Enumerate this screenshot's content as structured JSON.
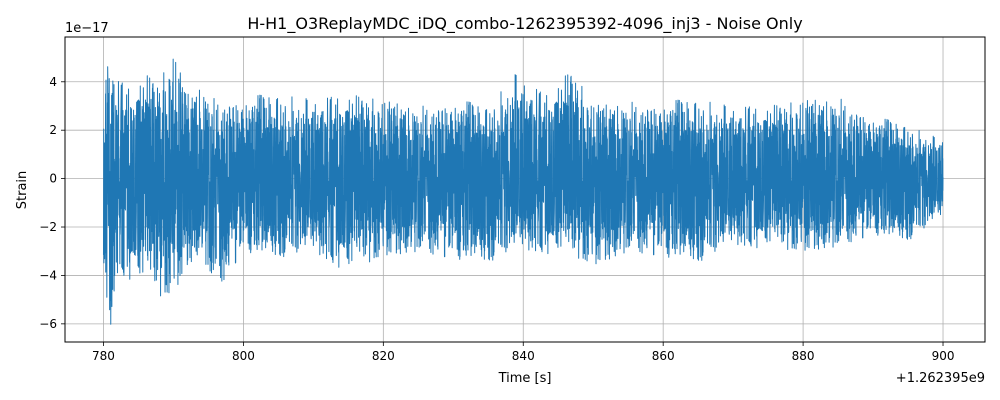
{
  "chart_data": {
    "type": "line",
    "title": "H-H1_O3ReplayMDC_iDQ_combo-1262395392-4096_inj3 - Noise Only",
    "xlabel": "Time [s]",
    "ylabel": "Strain",
    "x_offset_label": "+1.262395e9",
    "y_scale_label": "1e−17",
    "xlim": [
      774.5,
      906.0
    ],
    "ylim": [
      -6.75,
      5.85
    ],
    "x_ticks": [
      780,
      800,
      820,
      840,
      860,
      880,
      900
    ],
    "x_tick_labels": [
      "780",
      "800",
      "820",
      "840",
      "860",
      "880",
      "900"
    ],
    "y_ticks": [
      -6,
      -4,
      -2,
      0,
      2,
      4
    ],
    "y_tick_labels": [
      "−6",
      "−4",
      "−2",
      "0",
      "2",
      "4"
    ],
    "grid": true,
    "series_color": "#1f77b4",
    "series": [
      {
        "x_range": [
          780.0,
          900.0
        ],
        "envelope": [
          {
            "x": 780.0,
            "max": 3.6,
            "min": -4.1
          },
          {
            "x": 781.0,
            "max": 5.3,
            "min": -6.1
          },
          {
            "x": 782.0,
            "max": 4.1,
            "min": -4.0
          },
          {
            "x": 784.0,
            "max": 3.8,
            "min": -4.2
          },
          {
            "x": 786.0,
            "max": 4.3,
            "min": -4.4
          },
          {
            "x": 788.0,
            "max": 4.0,
            "min": -4.9
          },
          {
            "x": 790.0,
            "max": 5.2,
            "min": -4.8
          },
          {
            "x": 792.0,
            "max": 3.5,
            "min": -3.6
          },
          {
            "x": 794.0,
            "max": 3.9,
            "min": -3.0
          },
          {
            "x": 796.0,
            "max": 3.3,
            "min": -4.7
          },
          {
            "x": 800.0,
            "max": 3.4,
            "min": -3.0
          },
          {
            "x": 805.0,
            "max": 3.5,
            "min": -3.3
          },
          {
            "x": 810.0,
            "max": 3.3,
            "min": -3.1
          },
          {
            "x": 815.0,
            "max": 3.5,
            "min": -3.9
          },
          {
            "x": 820.0,
            "max": 3.2,
            "min": -3.2
          },
          {
            "x": 825.0,
            "max": 3.0,
            "min": -3.0
          },
          {
            "x": 830.0,
            "max": 3.3,
            "min": -3.3
          },
          {
            "x": 835.0,
            "max": 3.0,
            "min": -3.5
          },
          {
            "x": 839.0,
            "max": 4.4,
            "min": -3.0
          },
          {
            "x": 843.0,
            "max": 3.5,
            "min": -3.1
          },
          {
            "x": 847.0,
            "max": 4.5,
            "min": -3.2
          },
          {
            "x": 850.0,
            "max": 3.0,
            "min": -3.6
          },
          {
            "x": 855.0,
            "max": 3.2,
            "min": -3.0
          },
          {
            "x": 860.0,
            "max": 3.2,
            "min": -3.2
          },
          {
            "x": 865.0,
            "max": 3.3,
            "min": -3.5
          },
          {
            "x": 870.0,
            "max": 3.0,
            "min": -2.8
          },
          {
            "x": 875.0,
            "max": 3.0,
            "min": -2.9
          },
          {
            "x": 880.0,
            "max": 3.2,
            "min": -3.0
          },
          {
            "x": 885.0,
            "max": 3.4,
            "min": -2.8
          },
          {
            "x": 890.0,
            "max": 2.6,
            "min": -2.3
          },
          {
            "x": 895.0,
            "max": 2.2,
            "min": -2.6
          },
          {
            "x": 900.0,
            "max": 1.6,
            "min": -1.6
          }
        ]
      }
    ]
  }
}
